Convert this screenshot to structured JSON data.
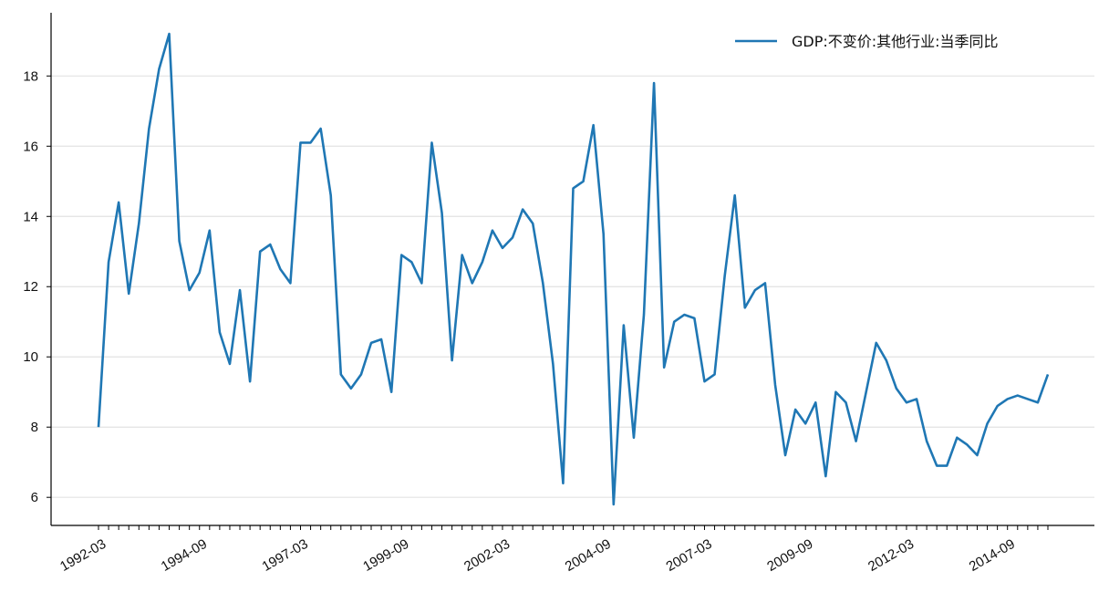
{
  "chart_data": {
    "type": "line",
    "title": "",
    "xlabel": "",
    "ylabel": "",
    "x_start": "1992-03",
    "x_tick_labels": [
      "1992-03",
      "1994-09",
      "1997-03",
      "1999-09",
      "2002-03",
      "2004-09",
      "2007-03",
      "2009-09",
      "2012-03",
      "2014-09"
    ],
    "y_ticks": [
      6,
      8,
      10,
      12,
      14,
      16,
      18
    ],
    "ylim": [
      5.2,
      19.8
    ],
    "grid": "horizontal",
    "legend_position": "top-right",
    "series": [
      {
        "name": "GDP:不变价:其他行业:当季同比",
        "color": "#1f77b4",
        "values": [
          8.0,
          12.7,
          14.4,
          11.8,
          13.8,
          16.5,
          18.2,
          19.2,
          13.3,
          11.9,
          12.4,
          13.6,
          10.7,
          9.8,
          11.9,
          9.3,
          13.0,
          13.2,
          12.5,
          12.1,
          16.1,
          16.1,
          16.5,
          14.6,
          9.5,
          9.1,
          9.5,
          10.4,
          10.5,
          9.0,
          12.9,
          12.7,
          12.1,
          16.1,
          14.1,
          9.9,
          12.9,
          12.1,
          12.7,
          13.6,
          13.1,
          13.4,
          14.2,
          13.8,
          12.1,
          9.8,
          6.4,
          14.8,
          15.0,
          16.6,
          13.5,
          5.8,
          10.9,
          7.7,
          11.2,
          17.8,
          9.7,
          11.0,
          11.2,
          11.1,
          9.3,
          9.5,
          12.3,
          14.6,
          11.4,
          11.9,
          12.1,
          9.2,
          7.2,
          8.5,
          8.1,
          8.7,
          6.6,
          9.0,
          8.7,
          7.6,
          9.0,
          10.4,
          9.9,
          9.1,
          8.7,
          8.8,
          7.6,
          6.9,
          6.9,
          7.7,
          7.5,
          7.2,
          8.1,
          8.6,
          8.8,
          8.9,
          8.8,
          8.7,
          9.5
        ]
      }
    ]
  }
}
